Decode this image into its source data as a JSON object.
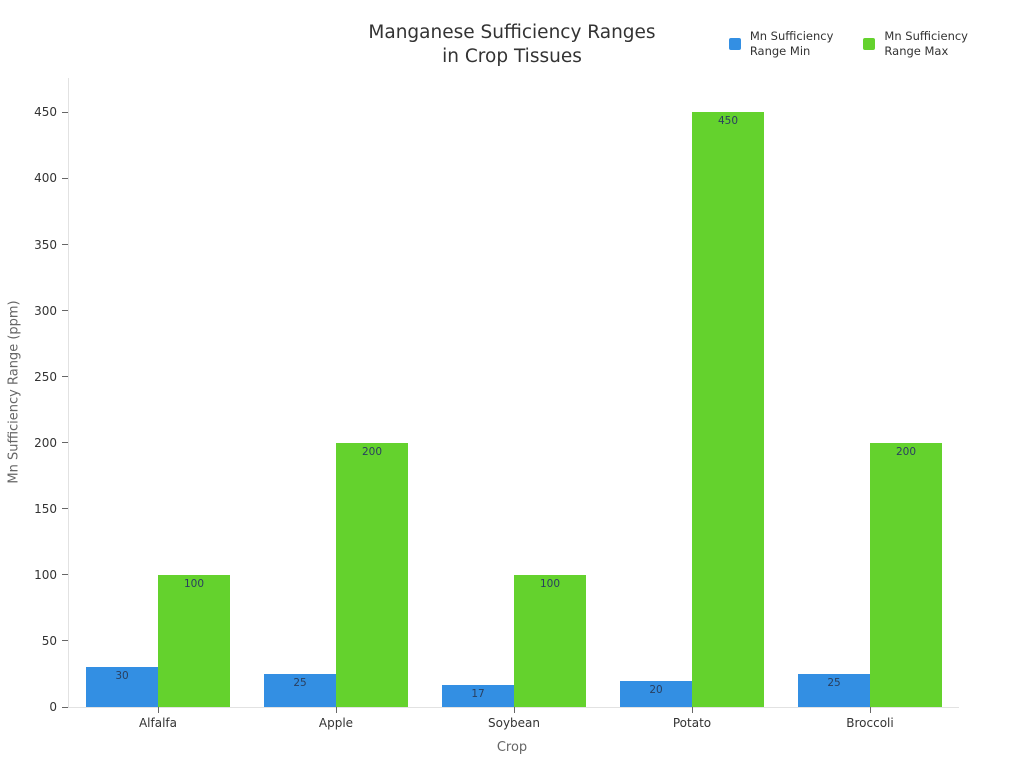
{
  "figure": {
    "background": "#ffffff"
  },
  "chart_data": {
    "type": "bar",
    "title": "Manganese Sufficiency Ranges\nin Crop Tissues",
    "xlabel": "Crop",
    "ylabel": "Mn Sufficiency Range (ppm)",
    "categories": [
      "Alfalfa",
      "Apple",
      "Soybean",
      "Potato",
      "Broccoli"
    ],
    "series": [
      {
        "name": "Mn Sufficiency\nRange Min",
        "values": [
          30,
          25,
          17,
          20,
          25
        ],
        "color": "#338FE3"
      },
      {
        "name": "Mn Sufficiency\nRange Max",
        "values": [
          100,
          200,
          100,
          450,
          200
        ],
        "color": "#64D22D"
      }
    ],
    "bar_labels": [
      {
        "series": "Mn Sufficiency Range Min",
        "labels": [
          "30",
          "25",
          "17",
          "20",
          "25"
        ]
      },
      {
        "series": "Mn Sufficiency Range Max",
        "labels": [
          "100",
          "200",
          "100",
          "450",
          "200"
        ]
      }
    ],
    "ylim": [
      0,
      476
    ],
    "yticks": [
      0,
      50,
      100,
      150,
      200,
      250,
      300,
      350,
      400,
      450
    ],
    "grid": false,
    "legend_position": "top-right",
    "colors": {
      "min_series": "#338FE3",
      "max_series": "#64D22D",
      "axis_line": "#e2e2e2",
      "tick_text": "#333333",
      "axis_title_text": "#666666",
      "bar_label_text": "#2a3f5f",
      "title_text": "#333333"
    }
  }
}
